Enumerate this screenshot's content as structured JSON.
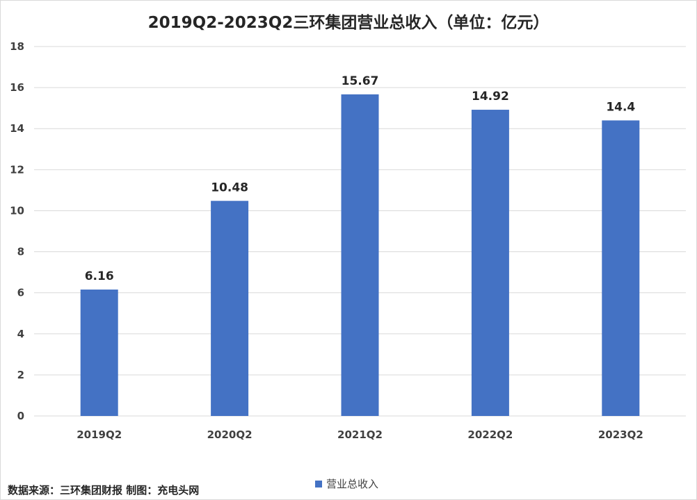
{
  "chart_data": {
    "type": "bar",
    "title": "2019Q2-2023Q2三环集团营业总收入（单位：亿元）",
    "categories": [
      "2019Q2",
      "2020Q2",
      "2021Q2",
      "2022Q2",
      "2023Q2"
    ],
    "series": [
      {
        "name": "营业总收入",
        "values": [
          6.16,
          10.48,
          15.67,
          14.92,
          14.4
        ],
        "data_labels": [
          "6.16",
          "10.48",
          "15.67",
          "14.92",
          "14.4"
        ],
        "color": "#4472C4"
      }
    ],
    "xlabel": "",
    "ylabel": "",
    "ylim": [
      0,
      18
    ],
    "yticks": [
      0,
      2,
      4,
      6,
      8,
      10,
      12,
      14,
      16,
      18
    ],
    "grid": true,
    "legend_position": "bottom"
  },
  "footer": {
    "source_note": "数据来源：三环集团财报  制图：充电头网"
  },
  "colors": {
    "bar": "#4472C4",
    "gridline": "#d9d9d9",
    "axis_text": "#404040",
    "title_text": "#262626"
  }
}
